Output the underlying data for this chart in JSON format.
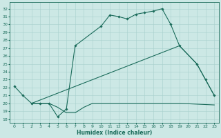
{
  "xlabel": "Humidex (Indice chaleur)",
  "xlim": [
    -0.5,
    23.5
  ],
  "ylim": [
    17.5,
    32.8
  ],
  "xticks": [
    0,
    1,
    2,
    3,
    4,
    5,
    6,
    7,
    8,
    9,
    10,
    11,
    12,
    13,
    14,
    15,
    16,
    17,
    18,
    19,
    20,
    21,
    22,
    23
  ],
  "yticks": [
    18,
    19,
    20,
    21,
    22,
    23,
    24,
    25,
    26,
    27,
    28,
    29,
    30,
    31,
    32
  ],
  "bg_color": "#cce8e5",
  "grid_color": "#a8d0cc",
  "line_color": "#1a6b5a",
  "curve_x": [
    0,
    1,
    2,
    3,
    4,
    5,
    6,
    7,
    10,
    11,
    12,
    13,
    14,
    15,
    16,
    17,
    18,
    19,
    21,
    22,
    23
  ],
  "curve_y": [
    22.2,
    21.0,
    20.0,
    20.0,
    20.0,
    18.3,
    19.3,
    27.3,
    29.8,
    31.2,
    31.0,
    30.7,
    31.3,
    31.5,
    31.7,
    32.0,
    30.0,
    27.3,
    25.0,
    23.0,
    21.0
  ],
  "flat_x": [
    2,
    3,
    4,
    5,
    6,
    7,
    8,
    9,
    10,
    11,
    12,
    13,
    14,
    15,
    16,
    17,
    18,
    19,
    23
  ],
  "flat_y": [
    20.0,
    20.0,
    20.0,
    19.5,
    18.8,
    18.8,
    19.5,
    20.0,
    20.0,
    20.0,
    20.0,
    20.0,
    20.0,
    20.0,
    20.0,
    20.0,
    20.0,
    20.0,
    19.8
  ],
  "diag_x": [
    2,
    19,
    21,
    22,
    23
  ],
  "diag_y": [
    20.0,
    27.3,
    25.0,
    23.0,
    21.0
  ]
}
